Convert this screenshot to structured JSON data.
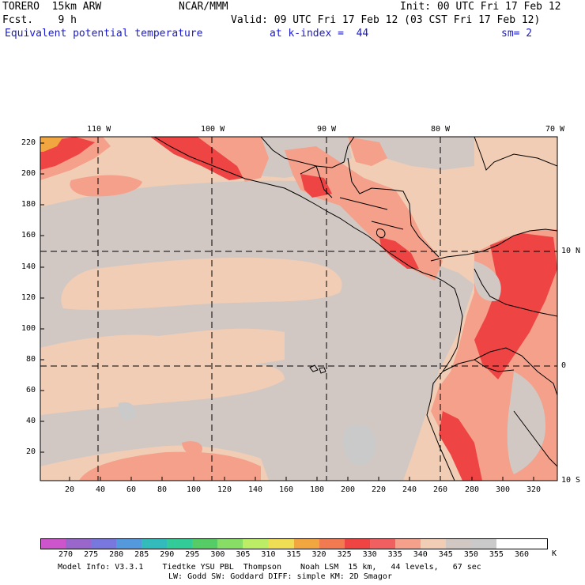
{
  "header": {
    "model": "TORERO  15km ARW",
    "agency": "NCAR/MMM",
    "init": "Init: 00 UTC Fri 17 Feb 12",
    "fcst": "Fcst.    9 h",
    "valid": "Valid: 09 UTC Fri 17 Feb 12 (03 CST Fri 17 Feb 12)",
    "field": "Equivalent potential temperature",
    "level": "at k-index =  44",
    "smooth": "sm= 2"
  },
  "axes": {
    "top_lon_labels": [
      "110 W",
      "100 W",
      "90 W",
      "80 W",
      "70 W"
    ],
    "right_lat_labels": [
      "10 N",
      "0",
      "10 S"
    ],
    "left_grid_labels": [
      "220",
      "200",
      "180",
      "160",
      "140",
      "120",
      "100",
      "80",
      "60",
      "40",
      "20"
    ],
    "bottom_grid_labels": [
      "20",
      "40",
      "60",
      "80",
      "100",
      "120",
      "140",
      "160",
      "180",
      "200",
      "220",
      "240",
      "260",
      "280",
      "300",
      "320"
    ]
  },
  "colorbar": {
    "unit": "K",
    "labels": [
      "270",
      "275",
      "280",
      "285",
      "290",
      "295",
      "300",
      "305",
      "310",
      "315",
      "320",
      "325",
      "330",
      "335",
      "340",
      "345",
      "350",
      "355",
      "360"
    ],
    "colors": [
      "#cc55cc",
      "#9966cc",
      "#7777dd",
      "#5599dd",
      "#33bbbb",
      "#33cc99",
      "#55cc66",
      "#88dd66",
      "#bbee66",
      "#eedd55",
      "#f2a640",
      "#f27a50",
      "#ee4444",
      "#f06060",
      "#f4a08a",
      "#f1cdb5",
      "#d2c8c3",
      "#cacaca",
      "#ffffff",
      "#ffffff"
    ]
  },
  "footer": {
    "line1": "Model Info: V3.3.1    Tiedtke YSU PBL  Thompson    Noah LSM  15 km,   44 levels,   67 sec",
    "line2": "LW: Godd SW: Goddard DIFF: simple KM: 2D Smagor"
  }
}
